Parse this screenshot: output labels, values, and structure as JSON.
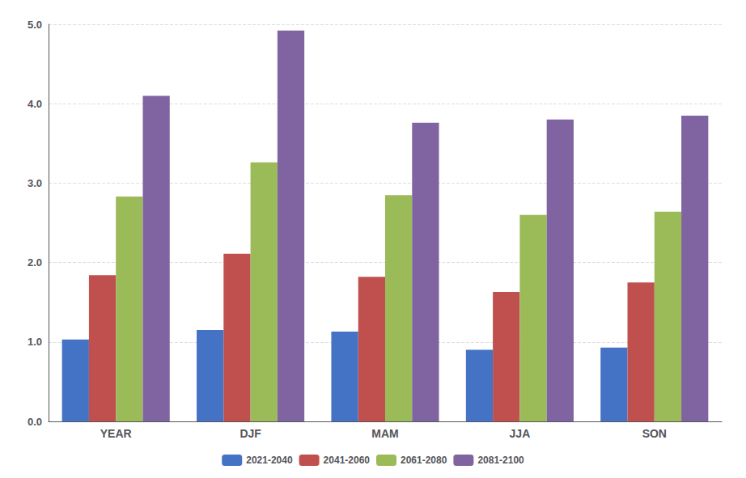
{
  "chart_data": {
    "type": "bar",
    "categories": [
      "YEAR",
      "DJF",
      "MAM",
      "JJA",
      "SON"
    ],
    "series": [
      {
        "name": "2021-2040",
        "color": "#4472C4",
        "values": [
          1.03,
          1.15,
          1.13,
          0.9,
          0.93
        ]
      },
      {
        "name": "2041-2060",
        "color": "#C0504D",
        "values": [
          1.84,
          2.11,
          1.82,
          1.63,
          1.75
        ]
      },
      {
        "name": "2061-2080",
        "color": "#9BBB59",
        "values": [
          2.83,
          3.26,
          2.85,
          2.6,
          2.64
        ]
      },
      {
        "name": "2081-2100",
        "color": "#8064A2",
        "values": [
          4.1,
          4.92,
          3.76,
          3.8,
          3.85
        ]
      }
    ],
    "ylim": [
      0.0,
      5.0
    ],
    "yticks": [
      {
        "value": 0,
        "label": "0.0"
      },
      {
        "value": 1,
        "label": "1.0"
      },
      {
        "value": 2,
        "label": "2.0"
      },
      {
        "value": 3,
        "label": "3.0"
      },
      {
        "value": 4,
        "label": "4.0"
      },
      {
        "value": 5,
        "label": "5.0"
      }
    ],
    "grid": true,
    "legend": "bottom"
  }
}
